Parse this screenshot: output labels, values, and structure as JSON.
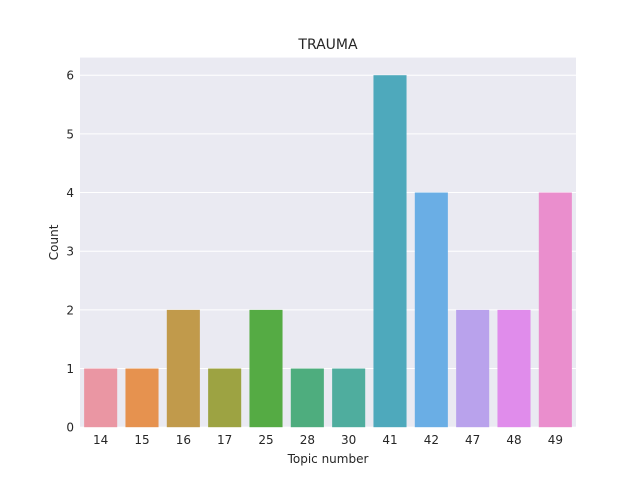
{
  "chart_data": {
    "type": "bar",
    "title": "TRAUMA",
    "xlabel": "Topic number",
    "ylabel": "Count",
    "categories": [
      "14",
      "15",
      "16",
      "17",
      "25",
      "28",
      "30",
      "41",
      "42",
      "47",
      "48",
      "49"
    ],
    "values": [
      1,
      1,
      2,
      1,
      2,
      1,
      1,
      6,
      4,
      2,
      2,
      4
    ],
    "colors": [
      "#ea96a3",
      "#e6924f",
      "#c19a4b",
      "#9da342",
      "#55ab44",
      "#4ead7e",
      "#4fad9e",
      "#4ea9bc",
      "#6aaee5",
      "#b9a2ec",
      "#e08ceb",
      "#ea8ecd"
    ],
    "ylim": [
      0,
      6.3
    ],
    "yticks": [
      0,
      1,
      2,
      3,
      4,
      5,
      6
    ],
    "grid": true,
    "background": "#eaeaf2"
  }
}
